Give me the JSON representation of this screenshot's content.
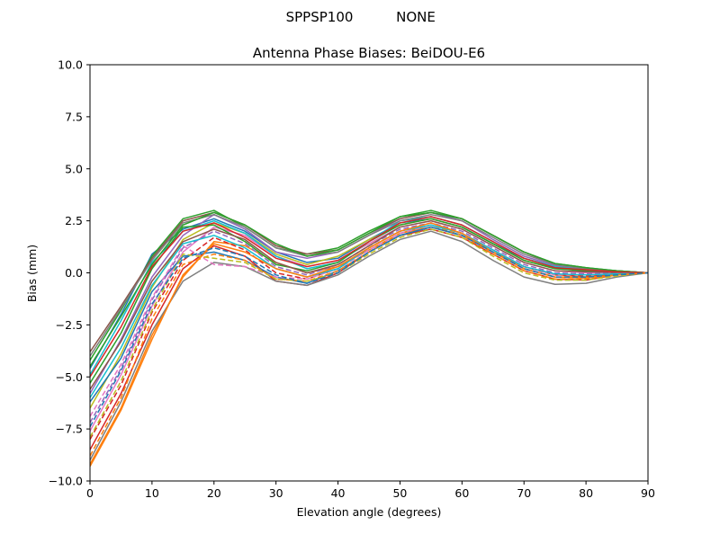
{
  "figure": {
    "suptitle_left": "SPPSP100",
    "suptitle_right": "NONE"
  },
  "chart_data": {
    "type": "line",
    "title": "Antenna Phase Biases: BeiDOU-E6",
    "xlabel": "Elevation angle (degrees)",
    "ylabel": "Bias (mm)",
    "xlim": [
      0,
      90
    ],
    "ylim": [
      -10,
      10
    ],
    "xticks": [
      0,
      10,
      20,
      30,
      40,
      50,
      60,
      70,
      80,
      90
    ],
    "xtick_labels": [
      "0",
      "10",
      "20",
      "30",
      "40",
      "50",
      "60",
      "70",
      "80",
      "90"
    ],
    "yticks": [
      -10,
      -7.5,
      -5,
      -2.5,
      0,
      2.5,
      5,
      7.5,
      10
    ],
    "ytick_labels": [
      "−10.0",
      "−7.5",
      "−5.0",
      "−2.5",
      "0.0",
      "2.5",
      "5.0",
      "7.5",
      "10.0"
    ],
    "grid": false,
    "legend": "none",
    "x": [
      0,
      5,
      10,
      15,
      20,
      25,
      30,
      35,
      40,
      45,
      50,
      55,
      60,
      65,
      70,
      75,
      80,
      85,
      90
    ],
    "series": [
      {
        "color": "#1f77b4",
        "style": "solid",
        "values": [
          -4.6,
          -2.0,
          0.9,
          2.1,
          2.6,
          2.0,
          1.0,
          0.5,
          0.7,
          1.6,
          2.4,
          2.6,
          2.2,
          1.4,
          0.7,
          0.3,
          0.15,
          0.1,
          0.0
        ]
      },
      {
        "color": "#ff7f0e",
        "style": "solid",
        "values": [
          -9.2,
          -6.5,
          -3.0,
          -0.2,
          1.5,
          1.3,
          0.5,
          0.0,
          0.3,
          1.1,
          1.9,
          2.2,
          1.8,
          1.0,
          0.3,
          -0.1,
          -0.2,
          -0.05,
          0.0
        ]
      },
      {
        "color": "#2ca02c",
        "style": "solid",
        "values": [
          -4.2,
          -1.8,
          0.8,
          2.6,
          3.0,
          2.2,
          1.2,
          0.9,
          1.2,
          2.0,
          2.7,
          3.0,
          2.6,
          1.8,
          1.0,
          0.45,
          0.25,
          0.1,
          0.0
        ]
      },
      {
        "color": "#d62728",
        "style": "solid",
        "values": [
          -8.5,
          -5.8,
          -2.5,
          0.2,
          1.3,
          0.8,
          -0.4,
          -0.6,
          0.0,
          1.0,
          1.8,
          2.1,
          1.7,
          0.9,
          0.1,
          -0.3,
          -0.35,
          -0.1,
          0.0
        ]
      },
      {
        "color": "#9467bd",
        "style": "solid",
        "values": [
          -5.8,
          -3.2,
          -0.2,
          1.8,
          2.8,
          2.1,
          1.0,
          0.7,
          1.0,
          1.8,
          2.6,
          2.9,
          2.5,
          1.6,
          0.8,
          0.35,
          0.2,
          0.08,
          0.0
        ]
      },
      {
        "color": "#8c564b",
        "style": "solid",
        "values": [
          -3.8,
          -1.6,
          0.7,
          2.5,
          2.9,
          2.3,
          1.3,
          0.9,
          1.1,
          1.9,
          2.6,
          2.9,
          2.6,
          1.8,
          1.0,
          0.4,
          0.2,
          0.1,
          0.0
        ]
      },
      {
        "color": "#e377c2",
        "style": "solid",
        "values": [
          -7.6,
          -4.9,
          -1.6,
          1.0,
          2.2,
          1.8,
          0.8,
          0.3,
          0.6,
          1.4,
          2.2,
          2.5,
          2.1,
          1.3,
          0.5,
          0.1,
          0.0,
          0.0,
          0.0
        ]
      },
      {
        "color": "#7f7f7f",
        "style": "solid",
        "values": [
          -9.0,
          -6.2,
          -2.8,
          -0.4,
          0.5,
          0.3,
          -0.4,
          -0.6,
          -0.1,
          0.8,
          1.6,
          2.0,
          1.5,
          0.6,
          -0.2,
          -0.55,
          -0.5,
          -0.2,
          0.0
        ]
      },
      {
        "color": "#bcbd22",
        "style": "solid",
        "values": [
          -6.5,
          -3.9,
          -0.7,
          1.6,
          2.4,
          1.9,
          0.9,
          0.4,
          0.8,
          1.6,
          2.3,
          2.6,
          2.2,
          1.4,
          0.6,
          0.2,
          0.1,
          0.05,
          0.0
        ]
      },
      {
        "color": "#17becf",
        "style": "solid",
        "values": [
          -4.9,
          -2.3,
          0.5,
          2.0,
          2.5,
          1.9,
          0.8,
          0.2,
          0.5,
          1.5,
          2.5,
          2.7,
          2.3,
          1.5,
          0.7,
          0.3,
          0.15,
          0.08,
          0.0
        ]
      },
      {
        "color": "#1f77b4",
        "style": "solid",
        "values": [
          -6.2,
          -4.1,
          -0.9,
          0.8,
          1.0,
          0.6,
          -0.2,
          -0.5,
          0.1,
          1.0,
          1.8,
          2.2,
          1.8,
          1.0,
          0.2,
          -0.2,
          -0.25,
          -0.1,
          0.0
        ]
      },
      {
        "color": "#ff7f0e",
        "style": "dashed",
        "values": [
          -8.8,
          -6.0,
          -2.2,
          0.4,
          0.9,
          0.6,
          -0.3,
          -0.4,
          0.1,
          1.0,
          1.9,
          2.3,
          1.8,
          0.9,
          0.1,
          -0.3,
          -0.3,
          -0.1,
          0.0
        ]
      },
      {
        "color": "#2ca02c",
        "style": "solid",
        "values": [
          -5.3,
          -2.9,
          0.2,
          2.2,
          2.3,
          1.5,
          0.4,
          0.1,
          0.5,
          1.5,
          2.3,
          2.6,
          2.2,
          1.4,
          0.6,
          0.2,
          0.1,
          0.05,
          0.0
        ]
      },
      {
        "color": "#d62728",
        "style": "dashed",
        "values": [
          -8.0,
          -5.4,
          -1.9,
          0.6,
          1.7,
          1.1,
          0.0,
          -0.3,
          0.2,
          1.2,
          2.0,
          2.4,
          1.9,
          1.1,
          0.3,
          -0.1,
          -0.15,
          -0.05,
          0.0
        ]
      },
      {
        "color": "#9467bd",
        "style": "dashed",
        "values": [
          -7.2,
          -4.6,
          -1.3,
          1.2,
          2.0,
          1.4,
          0.3,
          -0.1,
          0.4,
          1.3,
          2.1,
          2.4,
          2.0,
          1.2,
          0.4,
          0.0,
          -0.05,
          0.0,
          0.0
        ]
      },
      {
        "color": "#8c564b",
        "style": "solid",
        "values": [
          -5.6,
          -3.3,
          -0.4,
          1.5,
          2.1,
          1.6,
          0.5,
          0.0,
          0.4,
          1.3,
          2.2,
          2.5,
          2.1,
          1.3,
          0.5,
          0.1,
          0.05,
          0.02,
          0.0
        ]
      },
      {
        "color": "#e377c2",
        "style": "dashed",
        "values": [
          -6.9,
          -4.4,
          -1.2,
          1.3,
          0.4,
          0.3,
          -0.2,
          -0.3,
          0.2,
          1.1,
          1.9,
          2.3,
          1.9,
          1.1,
          0.3,
          -0.1,
          -0.1,
          -0.05,
          0.0
        ]
      },
      {
        "color": "#7f7f7f",
        "style": "solid",
        "values": [
          -4.0,
          -1.7,
          0.6,
          2.4,
          2.8,
          2.2,
          1.2,
          0.8,
          1.0,
          1.8,
          2.5,
          2.8,
          2.5,
          1.7,
          0.9,
          0.4,
          0.2,
          0.1,
          0.0
        ]
      },
      {
        "color": "#bcbd22",
        "style": "dashed",
        "values": [
          -7.9,
          -5.2,
          -1.8,
          0.9,
          0.7,
          0.5,
          -0.3,
          -0.4,
          0.0,
          0.9,
          1.7,
          2.1,
          1.7,
          0.8,
          0.0,
          -0.35,
          -0.35,
          -0.15,
          0.0
        ]
      },
      {
        "color": "#17becf",
        "style": "solid",
        "values": [
          -6.0,
          -3.6,
          -0.6,
          1.4,
          1.8,
          1.2,
          0.2,
          -0.2,
          0.2,
          1.2,
          2.0,
          2.3,
          1.9,
          1.1,
          0.3,
          -0.05,
          -0.1,
          -0.05,
          0.0
        ]
      },
      {
        "color": "#2ca02c",
        "style": "solid",
        "values": [
          -4.5,
          -2.1,
          0.4,
          2.3,
          2.9,
          2.3,
          1.4,
          0.8,
          1.1,
          1.9,
          2.7,
          2.9,
          2.6,
          1.8,
          1.0,
          0.45,
          0.25,
          0.1,
          0.0
        ]
      },
      {
        "color": "#d62728",
        "style": "solid",
        "values": [
          -5.0,
          -2.6,
          0.3,
          2.0,
          2.4,
          1.7,
          0.7,
          0.3,
          0.6,
          1.5,
          2.4,
          2.7,
          2.3,
          1.5,
          0.7,
          0.25,
          0.15,
          0.05,
          0.0
        ]
      },
      {
        "color": "#ff7f0e",
        "style": "solid",
        "values": [
          -9.3,
          -6.6,
          -3.2,
          -0.1,
          1.4,
          1.0,
          0.2,
          -0.2,
          0.3,
          1.2,
          2.0,
          2.4,
          1.9,
          1.0,
          0.2,
          -0.2,
          -0.25,
          -0.1,
          0.0
        ]
      },
      {
        "color": "#1f77b4",
        "style": "dashed",
        "values": [
          -7.4,
          -4.7,
          -1.5,
          0.7,
          1.2,
          0.8,
          -0.1,
          -0.5,
          0.0,
          1.0,
          1.8,
          2.2,
          1.8,
          1.0,
          0.2,
          -0.2,
          -0.2,
          -0.1,
          0.0
        ]
      }
    ]
  }
}
